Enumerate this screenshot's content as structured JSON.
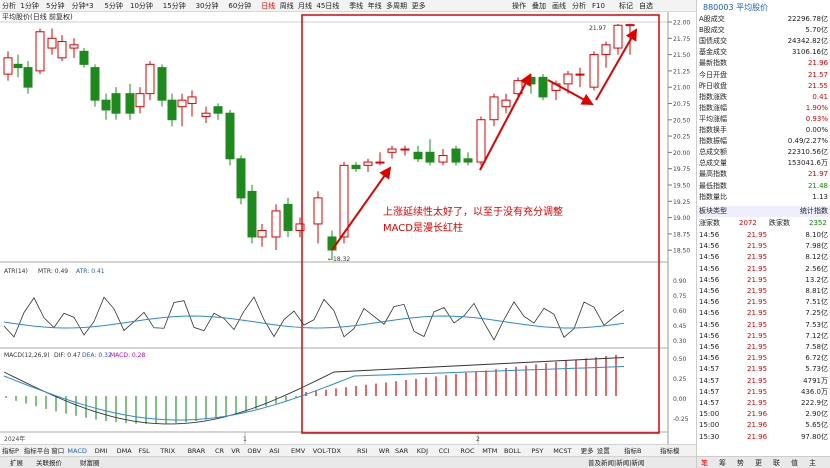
{
  "toolbar": {
    "items": [
      "分析",
      "1分钟",
      "5分钟",
      "分钟*3",
      "5分钟",
      "10分钟",
      "15分钟",
      "30分钟",
      "60分钟",
      "日线",
      "周线",
      "月线",
      "45日线",
      "季线",
      "年线",
      "多周期",
      "更多"
    ],
    "right": [
      "操作",
      "叠加",
      "画线",
      "分析",
      "F10",
      "标记",
      "自选",
      "画线",
      "F10",
      "标记",
      "自选",
      "画线",
      "F10",
      "标记",
      "自选"
    ],
    "right_short": [
      "操作",
      "叠加",
      "画线",
      "分析",
      "F10",
      "标记",
      "自选"
    ],
    "active": "日线"
  },
  "subtitle": "平均股价(日线 前复权)",
  "price_axis": [
    "22.00",
    "21.75",
    "21.50",
    "21.25",
    "21.00",
    "20.75",
    "20.50",
    "20.25",
    "20.00",
    "19.75",
    "19.50",
    "19.25",
    "19.00",
    "18.75",
    "18.50"
  ],
  "atr_axis": [
    "0.90",
    "0.75",
    "0.60",
    "0.45",
    "0.30"
  ],
  "macd_axis": [
    "0.50",
    "0.25",
    "0.00",
    "-0.25"
  ],
  "atr_label": {
    "name": "ATR(14)",
    "mtr": "MTR: 0.49",
    "atr": "ATR: 0.41"
  },
  "macd_label": {
    "name": "MACD(12,26,9)",
    "dif": "DIF: 0.47",
    "dea": "DEA: 0.32",
    "macd": "MACD: 0.28"
  },
  "annotation": {
    "line1": "上涨延续性太好了，以至于没有充分调整",
    "line2": "MACD是漫长红柱"
  },
  "low_label": "←18.32",
  "high_label": "21.97",
  "date_labels": [
    "2024年",
    "1",
    "2"
  ],
  "bottom_tabs": [
    "指标P",
    "指标平台",
    "窗口",
    "MACD",
    "DMI",
    "DMA",
    "FSL",
    "TRIX",
    "BRAR",
    "CR",
    "VR",
    "OBV",
    "ASI",
    "EMV",
    "VOL-TDX",
    "RSI",
    "WR",
    "SAR",
    "KDJ",
    "CCI",
    "ROC",
    "MTM",
    "BOLL",
    "PSY",
    "MCST",
    "更多",
    "设置"
  ],
  "bottom_right": [
    "指标B",
    "指标模"
  ],
  "status": [
    "扩展",
    "关联报价",
    "财富圈",
    "普及新闻|新闻|新闻"
  ],
  "rp": {
    "title": "880003 平均股价",
    "rows": [
      [
        "A股成交",
        "22296.78亿"
      ],
      [
        "B股成交",
        "5.70亿"
      ],
      [
        "国债成交",
        "24342.82亿"
      ],
      [
        "基金成交",
        "3106.16亿"
      ],
      [
        "最新指数",
        "21.96"
      ],
      [
        "今日开盘",
        "21.57"
      ],
      [
        "昨日收盘",
        "21.55"
      ],
      [
        "指数涨跌",
        "0.41"
      ],
      [
        "指数涨幅",
        "1.90%"
      ],
      [
        "平均涨幅",
        "0.93%"
      ],
      [
        "指数换手",
        "0.00%"
      ],
      [
        "指数振幅",
        "0.49/2.27%"
      ],
      [
        "总成交额",
        "22310.56亿"
      ],
      [
        "总成交量",
        "153041.6万"
      ],
      [
        "最高指数",
        "21.97"
      ],
      [
        "最低指数",
        "21.48"
      ],
      [
        "指数量比",
        "1.13"
      ]
    ],
    "cls_header": [
      "板块类型",
      "统计指数"
    ],
    "up_down": [
      "涨家数",
      "2072",
      "跌家数",
      "2352"
    ],
    "ticks": [
      [
        "14:56",
        "21.95",
        "8.10亿"
      ],
      [
        "14:56",
        "21.95",
        "7.98亿"
      ],
      [
        "14:56",
        "21.95",
        "8.12亿"
      ],
      [
        "14:56",
        "21.95",
        "2.56亿"
      ],
      [
        "14:56",
        "21.95",
        "13.2亿"
      ],
      [
        "14:56",
        "21.95",
        "8.81亿"
      ],
      [
        "14:56",
        "21.95",
        "7.51亿"
      ],
      [
        "14:56",
        "21.95",
        "7.25亿"
      ],
      [
        "14:56",
        "21.95",
        "7.53亿"
      ],
      [
        "14:56",
        "21.95",
        "7.12亿"
      ],
      [
        "14:56",
        "21.95",
        "7.58亿"
      ],
      [
        "14:56",
        "21.95",
        "6.72亿"
      ],
      [
        "14:57",
        "21.95",
        "5.73亿"
      ],
      [
        "14:57",
        "21.95",
        "4791万"
      ],
      [
        "14:57",
        "21.95",
        "436.0万"
      ],
      [
        "14:57",
        "21.95",
        "222.9亿"
      ],
      [
        "15:00",
        "21.96",
        "2.90亿"
      ],
      [
        "15:00",
        "21.96",
        "5.65亿"
      ],
      [
        "15:30",
        "21.96",
        "97.80亿"
      ]
    ],
    "bottom": [
      "笔",
      "筹",
      "势",
      "更",
      "联",
      "值",
      "主"
    ]
  }
}
